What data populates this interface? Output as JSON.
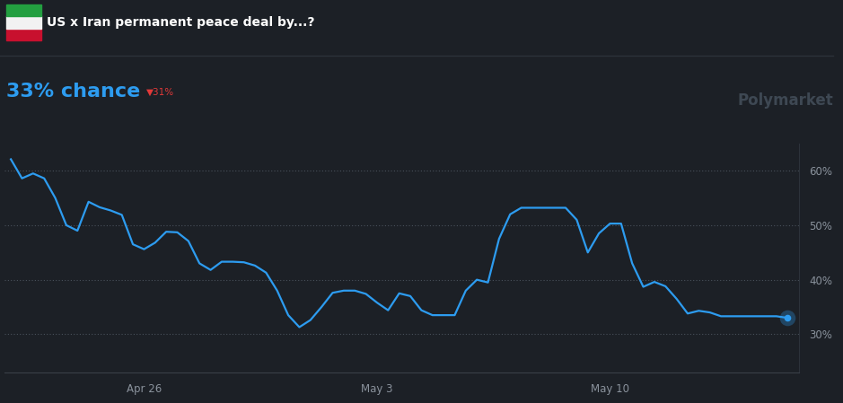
{
  "chart_data": {
    "type": "line",
    "title": "US x Iran permanent peace deal by...?",
    "current": {
      "value": 33,
      "label": "33% chance"
    },
    "change": {
      "value": -31,
      "label": "▼31%"
    },
    "source": "Polymarket",
    "categories": [
      null,
      null,
      null,
      null,
      null,
      null,
      null,
      null,
      null,
      null,
      null,
      null,
      "Apr 26",
      null,
      null,
      null,
      null,
      null,
      null,
      null,
      null,
      null,
      null,
      null,
      null,
      null,
      null,
      null,
      null,
      null,
      null,
      null,
      null,
      "May 3",
      null,
      null,
      null,
      null,
      null,
      null,
      null,
      null,
      null,
      null,
      null,
      null,
      null,
      null,
      null,
      null,
      null,
      null,
      null,
      null,
      "May 10",
      null,
      null,
      null,
      null,
      null,
      null,
      null,
      null,
      null,
      null,
      null,
      null,
      null,
      null,
      null,
      null
    ],
    "values": [
      62.1,
      58.6,
      59.5,
      58.6,
      55,
      50,
      49,
      54.3,
      53.3,
      52.7,
      51.9,
      46.5,
      45.6,
      46.8,
      48.8,
      48.7,
      47.1,
      43,
      41.8,
      43.3,
      43.3,
      43.2,
      42.6,
      41.3,
      38,
      33.5,
      31.3,
      32.6,
      35,
      37.6,
      38,
      38,
      37.4,
      35.8,
      34.4,
      37.5,
      37,
      34.4,
      33.5,
      33.5,
      33.5,
      38,
      40,
      39.5,
      47.5,
      52,
      53.2,
      53.2,
      53.2,
      53.2,
      53.2,
      51,
      45,
      48.5,
      50.3,
      50.3,
      43,
      38.7,
      39.6,
      38.8,
      36.5,
      33.8,
      34.3,
      34,
      33.3,
      33.3,
      33.3,
      33.3,
      33.3,
      33.3,
      33
    ],
    "color": "#2d9cf0",
    "ylim": [
      23,
      65
    ],
    "yticks": [
      {
        "value": 30,
        "label": "30%"
      },
      {
        "value": 40,
        "label": "40%"
      },
      {
        "value": 50,
        "label": "50%"
      },
      {
        "value": 60,
        "label": "60%"
      }
    ],
    "grid": true
  }
}
